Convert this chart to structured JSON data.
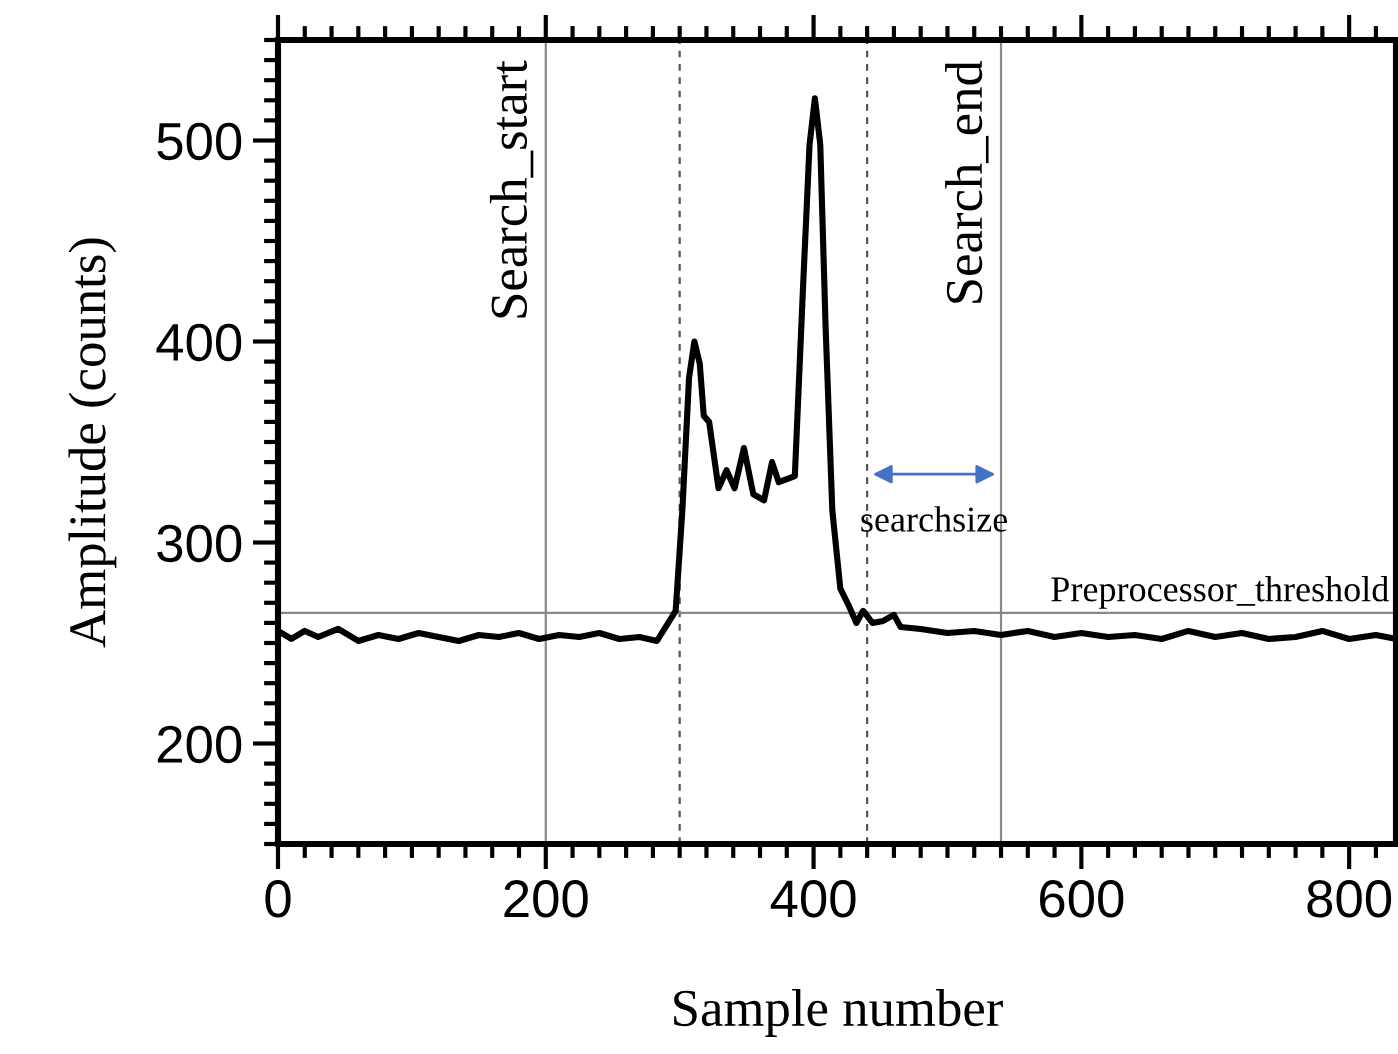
{
  "chart_data": {
    "type": "line",
    "xlabel": "Sample number",
    "ylabel": "Amplitude (counts)",
    "xlim": [
      0,
      835
    ],
    "ylim": [
      150,
      550
    ],
    "xticks": [
      0,
      200,
      400,
      600,
      800
    ],
    "yticks": [
      200,
      300,
      400,
      500
    ],
    "grid": false,
    "legend": false,
    "marker": "none",
    "line_style": "solid",
    "series": [
      {
        "color": "#000000",
        "x": [
          0,
          10,
          20,
          30,
          45,
          60,
          75,
          90,
          105,
          120,
          135,
          150,
          165,
          180,
          195,
          210,
          225,
          240,
          255,
          270,
          283,
          297,
          302,
          307,
          311,
          315,
          318,
          322,
          329,
          335,
          341,
          348,
          355,
          363,
          369,
          374,
          386,
          392,
          397,
          401,
          405,
          409,
          414,
          420,
          426,
          432,
          437,
          444,
          452,
          460,
          465,
          480,
          500,
          520,
          540,
          560,
          580,
          600,
          620,
          640,
          660,
          680,
          700,
          720,
          740,
          760,
          780,
          800,
          820,
          835
        ],
        "values": [
          256,
          252,
          256,
          253,
          257,
          251,
          254,
          252,
          255,
          253,
          251,
          254,
          253,
          255,
          252,
          254,
          253,
          255,
          252,
          253,
          251,
          266,
          316,
          382,
          400,
          389,
          363,
          360,
          327,
          336,
          327,
          347,
          324,
          321,
          340,
          330,
          333,
          425,
          498,
          521,
          498,
          407,
          316,
          277,
          269,
          260,
          266,
          260,
          261,
          264,
          258,
          257,
          255,
          256,
          254,
          256,
          253,
          255,
          253,
          254,
          252,
          256,
          253,
          255,
          252,
          253,
          256,
          252,
          254,
          252
        ]
      }
    ],
    "ref_lines": [
      {
        "axis": "x",
        "value": 200,
        "label": "Search_start",
        "color": "#888888",
        "line_style": "solid"
      },
      {
        "axis": "x",
        "value": 300,
        "label": null,
        "color": "#555555",
        "line_style": "dashed"
      },
      {
        "axis": "x",
        "value": 440,
        "label": null,
        "color": "#555555",
        "line_style": "dashed"
      },
      {
        "axis": "x",
        "value": 540,
        "label": "Search_end",
        "color": "#888888",
        "line_style": "solid"
      },
      {
        "axis": "y",
        "value": 265,
        "label": "Preprocessor_threshold",
        "color": "#888888",
        "line_style": "solid"
      }
    ],
    "annotations": [
      "searchsize"
    ]
  }
}
